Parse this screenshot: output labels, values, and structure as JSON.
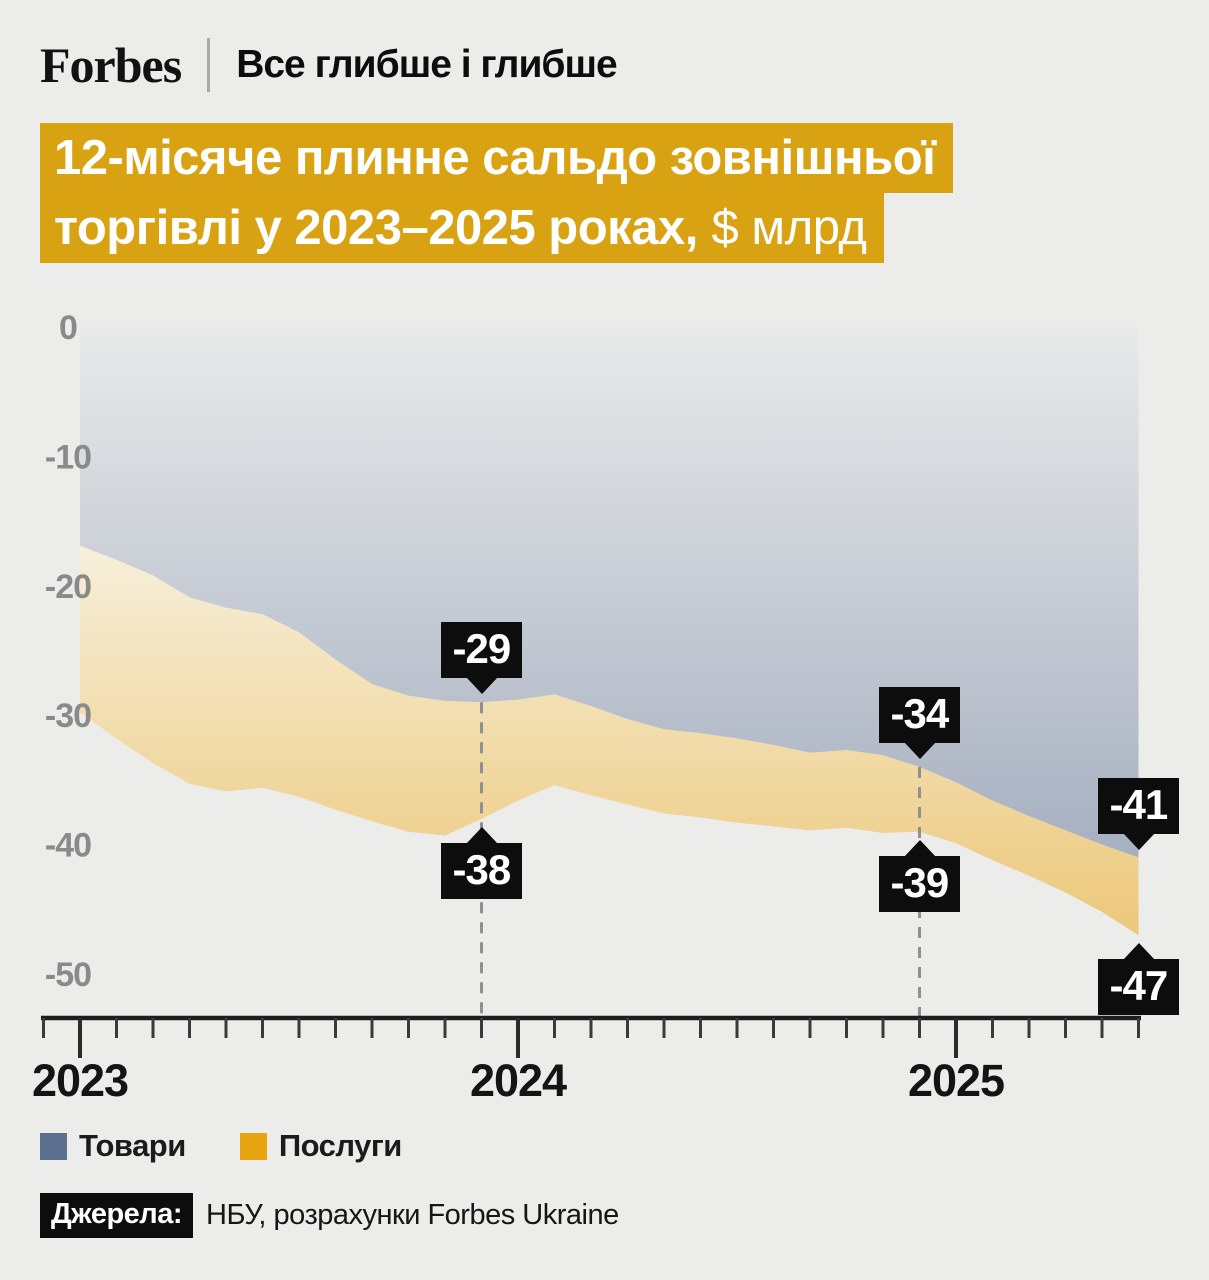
{
  "header": {
    "brand": "Forbes",
    "tagline": "Все глибше і глибше"
  },
  "title": {
    "line1": "12-місяче плинне сальдо зовнішньої",
    "line2_bold": "торгівлі у 2023–2025 роках,",
    "line2_light": "$ млрд",
    "bg": "#D9A213",
    "text_color": "#FFFFFF"
  },
  "chart_data": {
    "type": "area",
    "title": "12-місяче плинне сальдо зовнішньої торгівлі у 2023–2025 роках, $ млрд",
    "unit": "$ млрд",
    "x": [
      "2023-01",
      "2023-02",
      "2023-03",
      "2023-04",
      "2023-05",
      "2023-06",
      "2023-07",
      "2023-08",
      "2023-09",
      "2023-10",
      "2023-11",
      "2023-12",
      "2024-01",
      "2024-02",
      "2024-03",
      "2024-04",
      "2024-05",
      "2024-06",
      "2024-07",
      "2024-08",
      "2024-09",
      "2024-10",
      "2024-11",
      "2024-12",
      "2025-01",
      "2025-02",
      "2025-03",
      "2025-04",
      "2025-05",
      "2025-06"
    ],
    "series": [
      {
        "name": "Товари",
        "color": "#5C7090",
        "values": [
          -16.9,
          -18.0,
          -19.2,
          -20.9,
          -21.7,
          -22.2,
          -23.6,
          -25.7,
          -27.6,
          -28.5,
          -28.9,
          -29,
          -28.8,
          -28.4,
          -29.3,
          -30.3,
          -31.1,
          -31.4,
          -31.8,
          -32.3,
          -32.9,
          -32.7,
          -33.1,
          -34,
          -35.2,
          -36.6,
          -37.8,
          -38.9,
          -40.0,
          -41
        ]
      },
      {
        "name": "Послуги",
        "color": "#E9A511",
        "values": [
          -29.8,
          -31.8,
          -33.7,
          -35.3,
          -35.9,
          -35.6,
          -36.3,
          -37.3,
          -38.2,
          -39.0,
          -39.3,
          -38,
          -36.6,
          -35.4,
          -36.2,
          -36.9,
          -37.6,
          -37.9,
          -38.3,
          -38.6,
          -38.9,
          -38.7,
          -39.1,
          -39,
          -39.9,
          -41.2,
          -42.4,
          -43.7,
          -45.2,
          -47
        ]
      }
    ],
    "area_gradients": {
      "goods": [
        "#E8E9E9",
        "#A5AFC0"
      ],
      "services": [
        "#F7F0DC",
        "#ECC778"
      ]
    },
    "ylim": [
      -50,
      0
    ],
    "yticks": [
      0,
      -10,
      -20,
      -30,
      -40,
      -50
    ],
    "xticks_years": [
      "2023",
      "2024",
      "2025"
    ],
    "grid": false,
    "legend_position": "bottom-left",
    "annotation_bg": "#0D0D0D",
    "annotation_text_color": "#FFFFFF",
    "annotations": [
      {
        "label": "-29",
        "series": 0,
        "month_index": 11,
        "side": "above",
        "dashed_line": true
      },
      {
        "label": "-38",
        "series": 1,
        "month_index": 11,
        "side": "below",
        "dashed_line": false
      },
      {
        "label": "-34",
        "series": 0,
        "month_index": 23,
        "side": "above",
        "dashed_line": true
      },
      {
        "label": "-39",
        "series": 1,
        "month_index": 23,
        "side": "below",
        "dashed_line": false
      },
      {
        "label": "-41",
        "series": 0,
        "month_index": 29,
        "side": "above",
        "dashed_line": false
      },
      {
        "label": "-47",
        "series": 1,
        "month_index": 29,
        "side": "below",
        "dashed_line": false
      }
    ]
  },
  "legend": {
    "items": [
      {
        "label": "Товари",
        "color": "#5C7090"
      },
      {
        "label": "Послуги",
        "color": "#E9A511"
      }
    ]
  },
  "source": {
    "chip": "Джерела:",
    "text": "НБУ, розрахунки Forbes Ukraine",
    "chip_bg": "#0D0D0D",
    "chip_text_color": "#FFFFFF"
  }
}
